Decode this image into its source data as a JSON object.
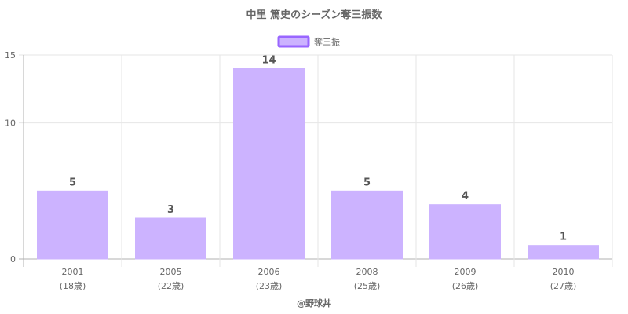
{
  "chart_data": {
    "type": "bar",
    "title": "中里 篤史のシーズン奪三振数",
    "legend": {
      "label": "奪三振",
      "position": "top"
    },
    "categories": [
      "2001",
      "2005",
      "2006",
      "2008",
      "2009",
      "2010"
    ],
    "sublabels": [
      "(18歳)",
      "(22歳)",
      "(23歳)",
      "(25歳)",
      "(26歳)",
      "(27歳)"
    ],
    "series": [
      {
        "name": "奪三振",
        "values": [
          5,
          3,
          14,
          5,
          4,
          1
        ]
      }
    ],
    "ylim": [
      0,
      15
    ],
    "yticks": [
      "0",
      "10",
      "15"
    ],
    "grid": true,
    "colors": {
      "bar_fill": "#ccb3ff",
      "bar_stroke": "#9966ff",
      "grid": "#e6e6e6",
      "axis": "#b0b0b0"
    }
  },
  "footer": {
    "credit": "@野球丼"
  }
}
